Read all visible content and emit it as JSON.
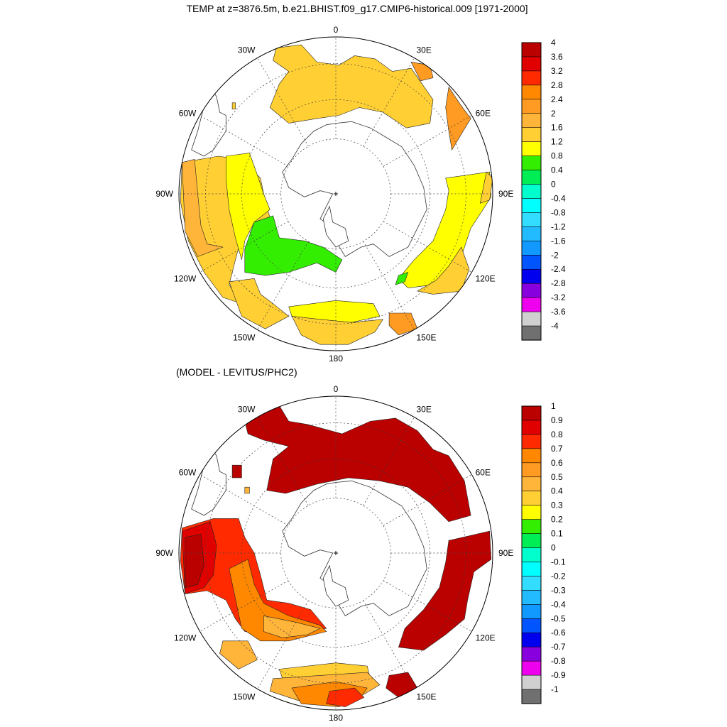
{
  "panels": [
    {
      "title": "TEMP at z=3876.5m, b.e21.BHIST.f09_g17.CMIP6-historical.009 [1971-2000]",
      "lon_labels": [
        "0",
        "30E",
        "60E",
        "90E",
        "120E",
        "150E",
        "180",
        "150W",
        "120W",
        "90W",
        "60W",
        "30W"
      ],
      "colorbar": {
        "labels": [
          "4",
          "3.6",
          "3.2",
          "2.8",
          "2.4",
          "2",
          "1.6",
          "1.2",
          "0.8",
          "0.4",
          "0",
          "-0.4",
          "-0.8",
          "-1.2",
          "-1.6",
          "-2",
          "-2.4",
          "-2.8",
          "-3.2",
          "-3.6",
          "-4"
        ]
      }
    },
    {
      "title": "(MODEL - LEVITUS/PHC2)",
      "lon_labels": [
        "0",
        "30E",
        "60E",
        "90E",
        "120E",
        "150E",
        "180",
        "150W",
        "120W",
        "90W",
        "60W",
        "30W"
      ],
      "colorbar": {
        "labels": [
          "1",
          "0.9",
          "0.8",
          "0.7",
          "0.6",
          "0.5",
          "0.4",
          "0.3",
          "0.2",
          "0.1",
          "0",
          "-0.1",
          "-0.2",
          "-0.3",
          "-0.4",
          "-0.5",
          "-0.6",
          "-0.7",
          "-0.8",
          "-0.9",
          "-1"
        ]
      }
    }
  ],
  "colors": {
    "palette": [
      "#bb0000",
      "#e10000",
      "#ff2a00",
      "#ff8800",
      "#ff9b22",
      "#ffb43a",
      "#ffcf33",
      "#ffff00",
      "#33ee00",
      "#00ee55",
      "#00ffcc",
      "#00ffff",
      "#33ddff",
      "#22bbff",
      "#1199ff",
      "#0055ff",
      "#0000ee",
      "#8800dd",
      "#ee00ee",
      "#d0d0d0",
      "#707070"
    ],
    "land_outline": "#333333",
    "grid": "#444444"
  }
}
